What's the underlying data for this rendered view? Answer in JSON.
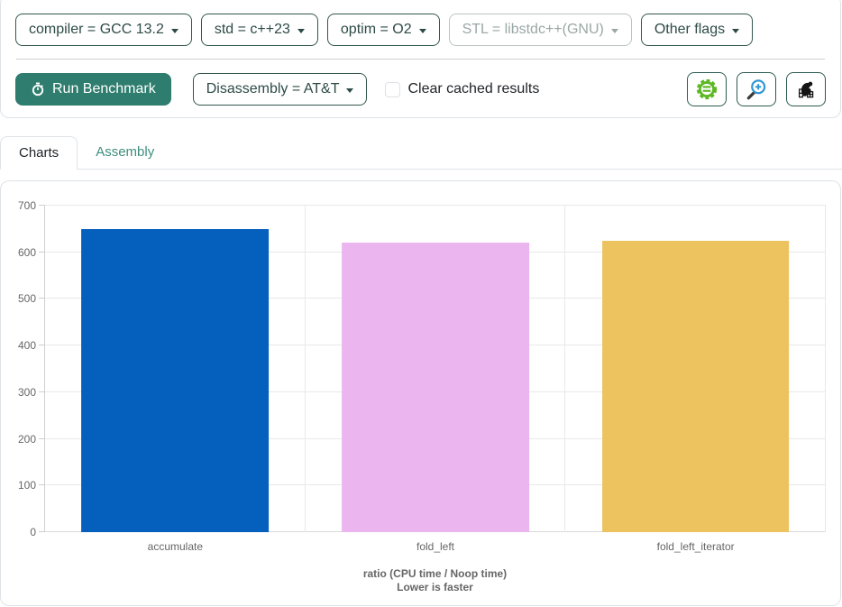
{
  "toolbar_top": {
    "dropdowns": [
      {
        "label": "compiler = GCC 13.2",
        "disabled": false
      },
      {
        "label": "std = c++23",
        "disabled": false
      },
      {
        "label": "optim = O2",
        "disabled": false
      },
      {
        "label": "STL = libstdc++(GNU)",
        "disabled": true
      },
      {
        "label": "Other flags",
        "disabled": false
      }
    ]
  },
  "toolbar_actions": {
    "run_button_label": "Run Benchmark",
    "disassembly_dropdown_label": "Disassembly = AT&T",
    "clear_cached_label": "Clear cached results",
    "clear_cached_checked": false,
    "icon_buttons": [
      "compiler-explorer",
      "code-magnifier",
      "build-bench"
    ]
  },
  "tabs": [
    {
      "label": "Charts",
      "active": true
    },
    {
      "label": "Assembly",
      "active": false
    }
  ],
  "colors": {
    "accent_teal_dark": "#2d4b46",
    "accent_teal_border": "#32564e",
    "run_button_bg": "#2e7d6e",
    "inactive_tab_link": "#3e8e7e",
    "disabled_text": "#9aa8a5",
    "compiler_explorer_green": "#5cb823",
    "magnifier_blue": "#2e96d6"
  },
  "chart_data": {
    "type": "bar",
    "categories": [
      "accumulate",
      "fold_left",
      "fold_left_iterator"
    ],
    "values": [
      650,
      620,
      624
    ],
    "bar_colors": [
      "#055fbc",
      "#ebb6ef",
      "#edc35f"
    ],
    "title": "",
    "xlabel_line1": "ratio (CPU time / Noop time)",
    "xlabel_line2": "Lower is faster",
    "ylabel": "",
    "ylim": [
      0,
      700
    ],
    "yticks": [
      0,
      100,
      200,
      300,
      400,
      500,
      600,
      700
    ],
    "grid": true,
    "legend_position": "none"
  }
}
